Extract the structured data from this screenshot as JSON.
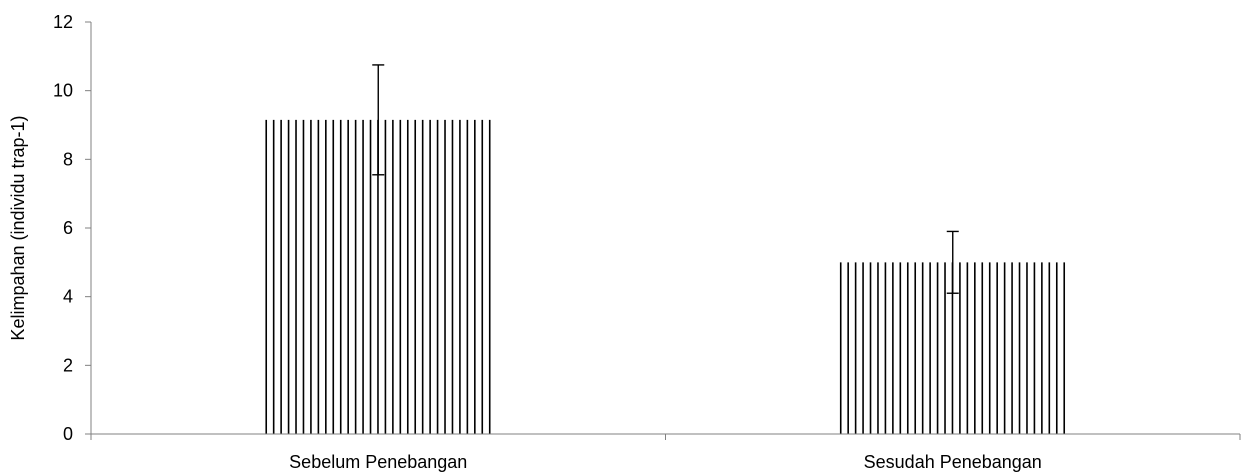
{
  "chart_data": {
    "type": "bar",
    "title": "",
    "xlabel": "",
    "ylabel": "Kelimpahan (individu trap-1)",
    "categories": [
      "Sebelum Penebangan",
      "Sesudah Penebangan"
    ],
    "values": [
      9.15,
      5.0
    ],
    "error": [
      1.6,
      0.9
    ],
    "ylim": [
      0,
      12
    ],
    "yticks": [
      0,
      2,
      4,
      6,
      8,
      10,
      12
    ],
    "grid": false,
    "legend": "none",
    "bar_fill": "vertical-hatch",
    "colors": {
      "bar_stroke": "#000000",
      "axis": "#808080",
      "error_bar": "#000000",
      "background": "#ffffff"
    }
  }
}
